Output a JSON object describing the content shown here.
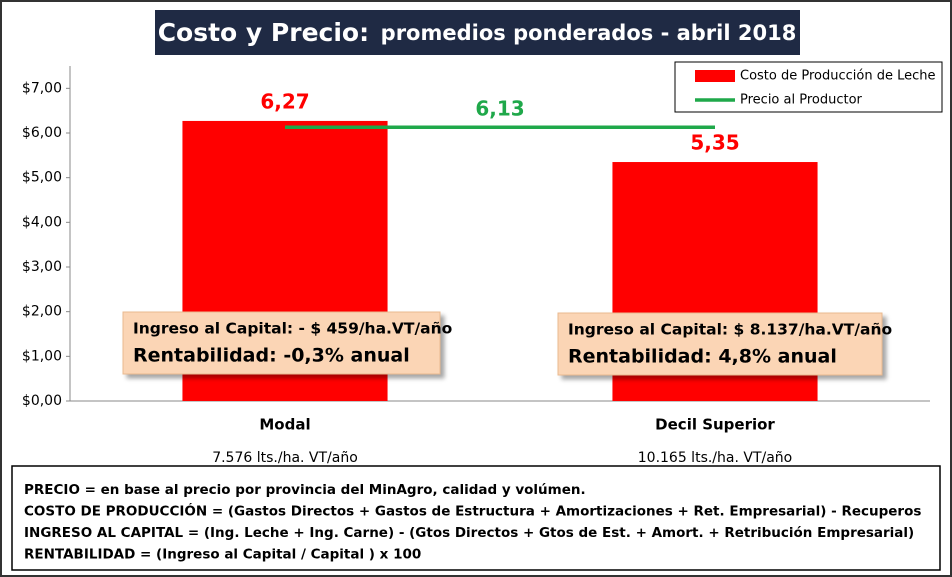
{
  "chart_data": {
    "type": "bar",
    "title": [
      "Costo  y Precio:",
      "promedios ponderados - abril 2018"
    ],
    "categories": [
      "Modal",
      "Decil Superior"
    ],
    "category_sublabels": [
      "7.576 lts./ha. VT/año",
      "10.165 lts./ha.  VT/año"
    ],
    "series": [
      {
        "name": "Costo de Producción de Leche",
        "type": "bar",
        "color": "#ff0000",
        "values": [
          6.27,
          5.35
        ],
        "value_labels": [
          "6,27",
          "5,35"
        ]
      },
      {
        "name": "Precio al Productor",
        "type": "line",
        "color": "#1fa84a",
        "values": [
          6.13,
          6.13
        ],
        "label": "6,13"
      }
    ],
    "ylim": [
      0,
      7.5
    ],
    "yticks": [
      {
        "value": 0,
        "label": "$0,00"
      },
      {
        "value": 1,
        "label": "$1,00"
      },
      {
        "value": 2,
        "label": "$2,00"
      },
      {
        "value": 3,
        "label": "$3,00"
      },
      {
        "value": 4,
        "label": "$4,00"
      },
      {
        "value": 5,
        "label": "$5,00"
      },
      {
        "value": 6,
        "label": "$6,00"
      },
      {
        "value": 7,
        "label": "$7,00"
      }
    ],
    "legend": "top-right",
    "annotations": [
      {
        "lines": [
          "Ingreso al Capital: - $ 459/ha.VT/año",
          "Rentabilidad: -0,3% anual"
        ]
      },
      {
        "lines": [
          "Ingreso al Capital: $ 8.137/ha.VT/año",
          "Rentabilidad: 4,8% anual"
        ]
      }
    ],
    "footnotes": [
      "PRECIO = en base al precio por provincia del MinAgro, calidad y volúmen.",
      "COSTO DE PRODUCCIÓN = (Gastos Directos + Gastos de Estructura + Amortizaciones + Ret. Empresarial) - Recuperos",
      "INGRESO AL CAPITAL = (Ing. Leche + Ing. Carne) - (Gtos Directos + Gtos de Est. + Amort. + Retribución Empresarial)",
      "RENTABILIDAD = (Ingreso al Capital / Capital ) x 100"
    ]
  }
}
